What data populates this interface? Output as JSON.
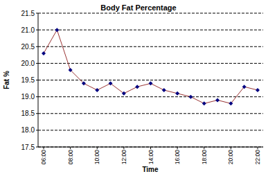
{
  "chart_data": {
    "type": "line",
    "title": "Body Fat Percentage",
    "x_label": "Time",
    "y_label": "Fat %",
    "categories": [
      "06:00",
      null,
      "08:00",
      null,
      "10:00",
      null,
      "12:00",
      null,
      "14:00",
      null,
      "16:00",
      null,
      "18:00",
      null,
      "20:00",
      null,
      "22:00"
    ],
    "series": [
      {
        "name": "Fat %",
        "color": "#993333",
        "marker": "diamond",
        "line_style": "solid",
        "values": [
          20.3,
          21.0,
          19.8,
          19.4,
          19.2,
          19.4,
          19.1,
          19.3,
          19.4,
          19.2,
          19.1,
          19.0,
          18.8,
          18.9,
          18.8,
          19.3,
          19.2
        ]
      }
    ],
    "ylim": [
      17.5,
      21.5
    ],
    "yticks": [
      17.5,
      {
        "value": 18,
        "label": "18.0"
      },
      18.5,
      {
        "value": 19,
        "label": "19.0"
      },
      19.5,
      {
        "value": 20,
        "label": "20.0"
      },
      20.5,
      {
        "value": 21,
        "label": "21.0"
      },
      21.5
    ],
    "grid": true
  }
}
